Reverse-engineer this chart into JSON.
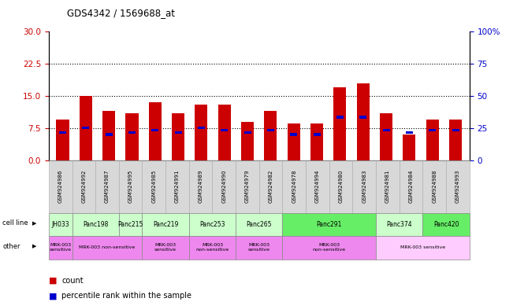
{
  "title": "GDS4342 / 1569688_at",
  "samples": [
    "GSM924986",
    "GSM924992",
    "GSM924987",
    "GSM924995",
    "GSM924985",
    "GSM924991",
    "GSM924989",
    "GSM924990",
    "GSM924979",
    "GSM924982",
    "GSM924978",
    "GSM924994",
    "GSM924980",
    "GSM924983",
    "GSM924981",
    "GSM924984",
    "GSM924988",
    "GSM924993"
  ],
  "counts": [
    9.5,
    15.0,
    11.5,
    11.0,
    13.5,
    11.0,
    13.0,
    13.0,
    9.0,
    11.5,
    8.5,
    8.5,
    17.0,
    18.0,
    11.0,
    6.0,
    9.5,
    9.5
  ],
  "percentile_ranks_left": [
    6.5,
    7.5,
    6.0,
    6.5,
    7.0,
    6.5,
    7.5,
    7.0,
    6.5,
    7.0,
    6.0,
    6.0,
    10.0,
    10.0,
    7.0,
    6.5,
    7.0,
    7.0
  ],
  "cell_line_spans": [
    {
      "name": "JH033",
      "cols": [
        0
      ],
      "color": "#ccffcc"
    },
    {
      "name": "Panc198",
      "cols": [
        1,
        2
      ],
      "color": "#ccffcc"
    },
    {
      "name": "Panc215",
      "cols": [
        3
      ],
      "color": "#ccffcc"
    },
    {
      "name": "Panc219",
      "cols": [
        4,
        5
      ],
      "color": "#ccffcc"
    },
    {
      "name": "Panc253",
      "cols": [
        6,
        7
      ],
      "color": "#ccffcc"
    },
    {
      "name": "Panc265",
      "cols": [
        8,
        9
      ],
      "color": "#ccffcc"
    },
    {
      "name": "Panc291",
      "cols": [
        10,
        11,
        12,
        13
      ],
      "color": "#66ee66"
    },
    {
      "name": "Panc374",
      "cols": [
        14,
        15
      ],
      "color": "#ccffcc"
    },
    {
      "name": "Panc420",
      "cols": [
        16,
        17
      ],
      "color": "#66ee66"
    }
  ],
  "other_spans": [
    {
      "label": "MRK-003\nsensitive",
      "cols": [
        0
      ],
      "color": "#ee88ee"
    },
    {
      "label": "MRK-003 non-sensitive",
      "cols": [
        1,
        2,
        3
      ],
      "color": "#ee88ee"
    },
    {
      "label": "MRK-003\nsensitive",
      "cols": [
        4,
        5
      ],
      "color": "#ee88ee"
    },
    {
      "label": "MRK-003\nnon-sensitive",
      "cols": [
        6,
        7
      ],
      "color": "#ee88ee"
    },
    {
      "label": "MRK-003\nsensitive",
      "cols": [
        8,
        9
      ],
      "color": "#ee88ee"
    },
    {
      "label": "MRK-003\nnon-sensitive",
      "cols": [
        10,
        11,
        12,
        13
      ],
      "color": "#ee88ee"
    },
    {
      "label": "MRK-003 sensitive",
      "cols": [
        14,
        15,
        16,
        17
      ],
      "color": "#ffccff"
    }
  ],
  "ylim_left": [
    0,
    30
  ],
  "ylim_right": [
    0,
    100
  ],
  "yticks_left": [
    0,
    7.5,
    15,
    22.5,
    30
  ],
  "yticks_right": [
    0,
    25,
    50,
    75,
    100
  ],
  "bar_color": "#cc0000",
  "percentile_color": "#0000cc",
  "bg_color": "#d8d8d8",
  "plot_bg": "#ffffff",
  "left_label_color": "#cc0000",
  "right_label_color": "#0000cc",
  "dotted_lines": [
    7.5,
    15.0,
    22.5
  ]
}
